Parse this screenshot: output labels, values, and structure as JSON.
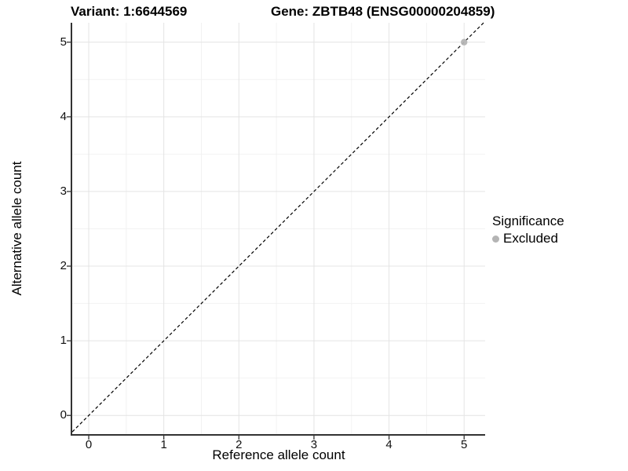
{
  "chart_data": {
    "type": "scatter",
    "title_left": "Variant: 1:6644569",
    "title_right": "Gene: ZBTB48 (ENSG00000204859)",
    "xlabel": "Reference allele count",
    "ylabel": "Alternative allele count",
    "xlim": [
      -0.22,
      5.28
    ],
    "ylim": [
      -0.25,
      5.26
    ],
    "x_ticks": [
      0,
      1,
      2,
      3,
      4,
      5
    ],
    "y_ticks": [
      0,
      1,
      2,
      3,
      4,
      5
    ],
    "minor_ticks": [
      0.5,
      1.5,
      2.5,
      3.5,
      4.5
    ],
    "grid": true,
    "points": [
      {
        "x": 5,
        "y": 5,
        "series": "Excluded"
      }
    ],
    "reference_line": {
      "type": "identity",
      "style": "dashed"
    },
    "legend": {
      "title": "Significance",
      "position": "right",
      "entries": [
        {
          "label": "Excluded",
          "color": "#b4b4b4"
        }
      ]
    },
    "colors": {
      "background": "#ffffff",
      "major_grid": "#e4e4e4",
      "minor_grid": "#f2f2f2",
      "axis_line": "#333333",
      "tick_mark": "#333333",
      "identity_line": "#000000",
      "point": "#b4b4b4",
      "text": "#000000"
    }
  }
}
